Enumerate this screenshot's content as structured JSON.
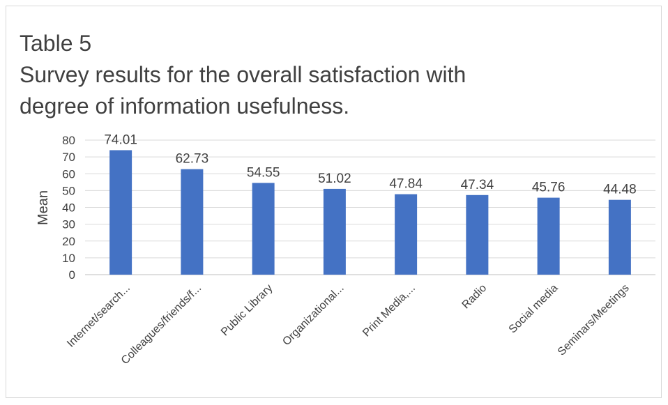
{
  "chart_data": {
    "type": "bar",
    "title_lines": [
      "Table 5",
      "Survey results for the overall satisfaction with",
      "degree of information usefulness."
    ],
    "xlabel": "",
    "ylabel": "Mean",
    "ylim": [
      0,
      80
    ],
    "yticks": [
      0,
      10,
      20,
      30,
      40,
      50,
      60,
      70,
      80
    ],
    "grid": true,
    "categories": [
      "Internet/search...",
      "Colleagues/friends/f...",
      "Public Library",
      "Organizational...",
      "Print Media,...",
      "Radio",
      "Social media",
      "Seminars/Meetings"
    ],
    "values": [
      74.01,
      62.73,
      54.55,
      51.02,
      47.84,
      47.34,
      45.76,
      44.48
    ],
    "value_labels": [
      "74.01",
      "62.73",
      "54.55",
      "51.02",
      "47.84",
      "47.34",
      "45.76",
      "44.48"
    ],
    "bar_color": "#4472c4",
    "grid_color": "#d9d9d9",
    "text_color": "#404040"
  }
}
